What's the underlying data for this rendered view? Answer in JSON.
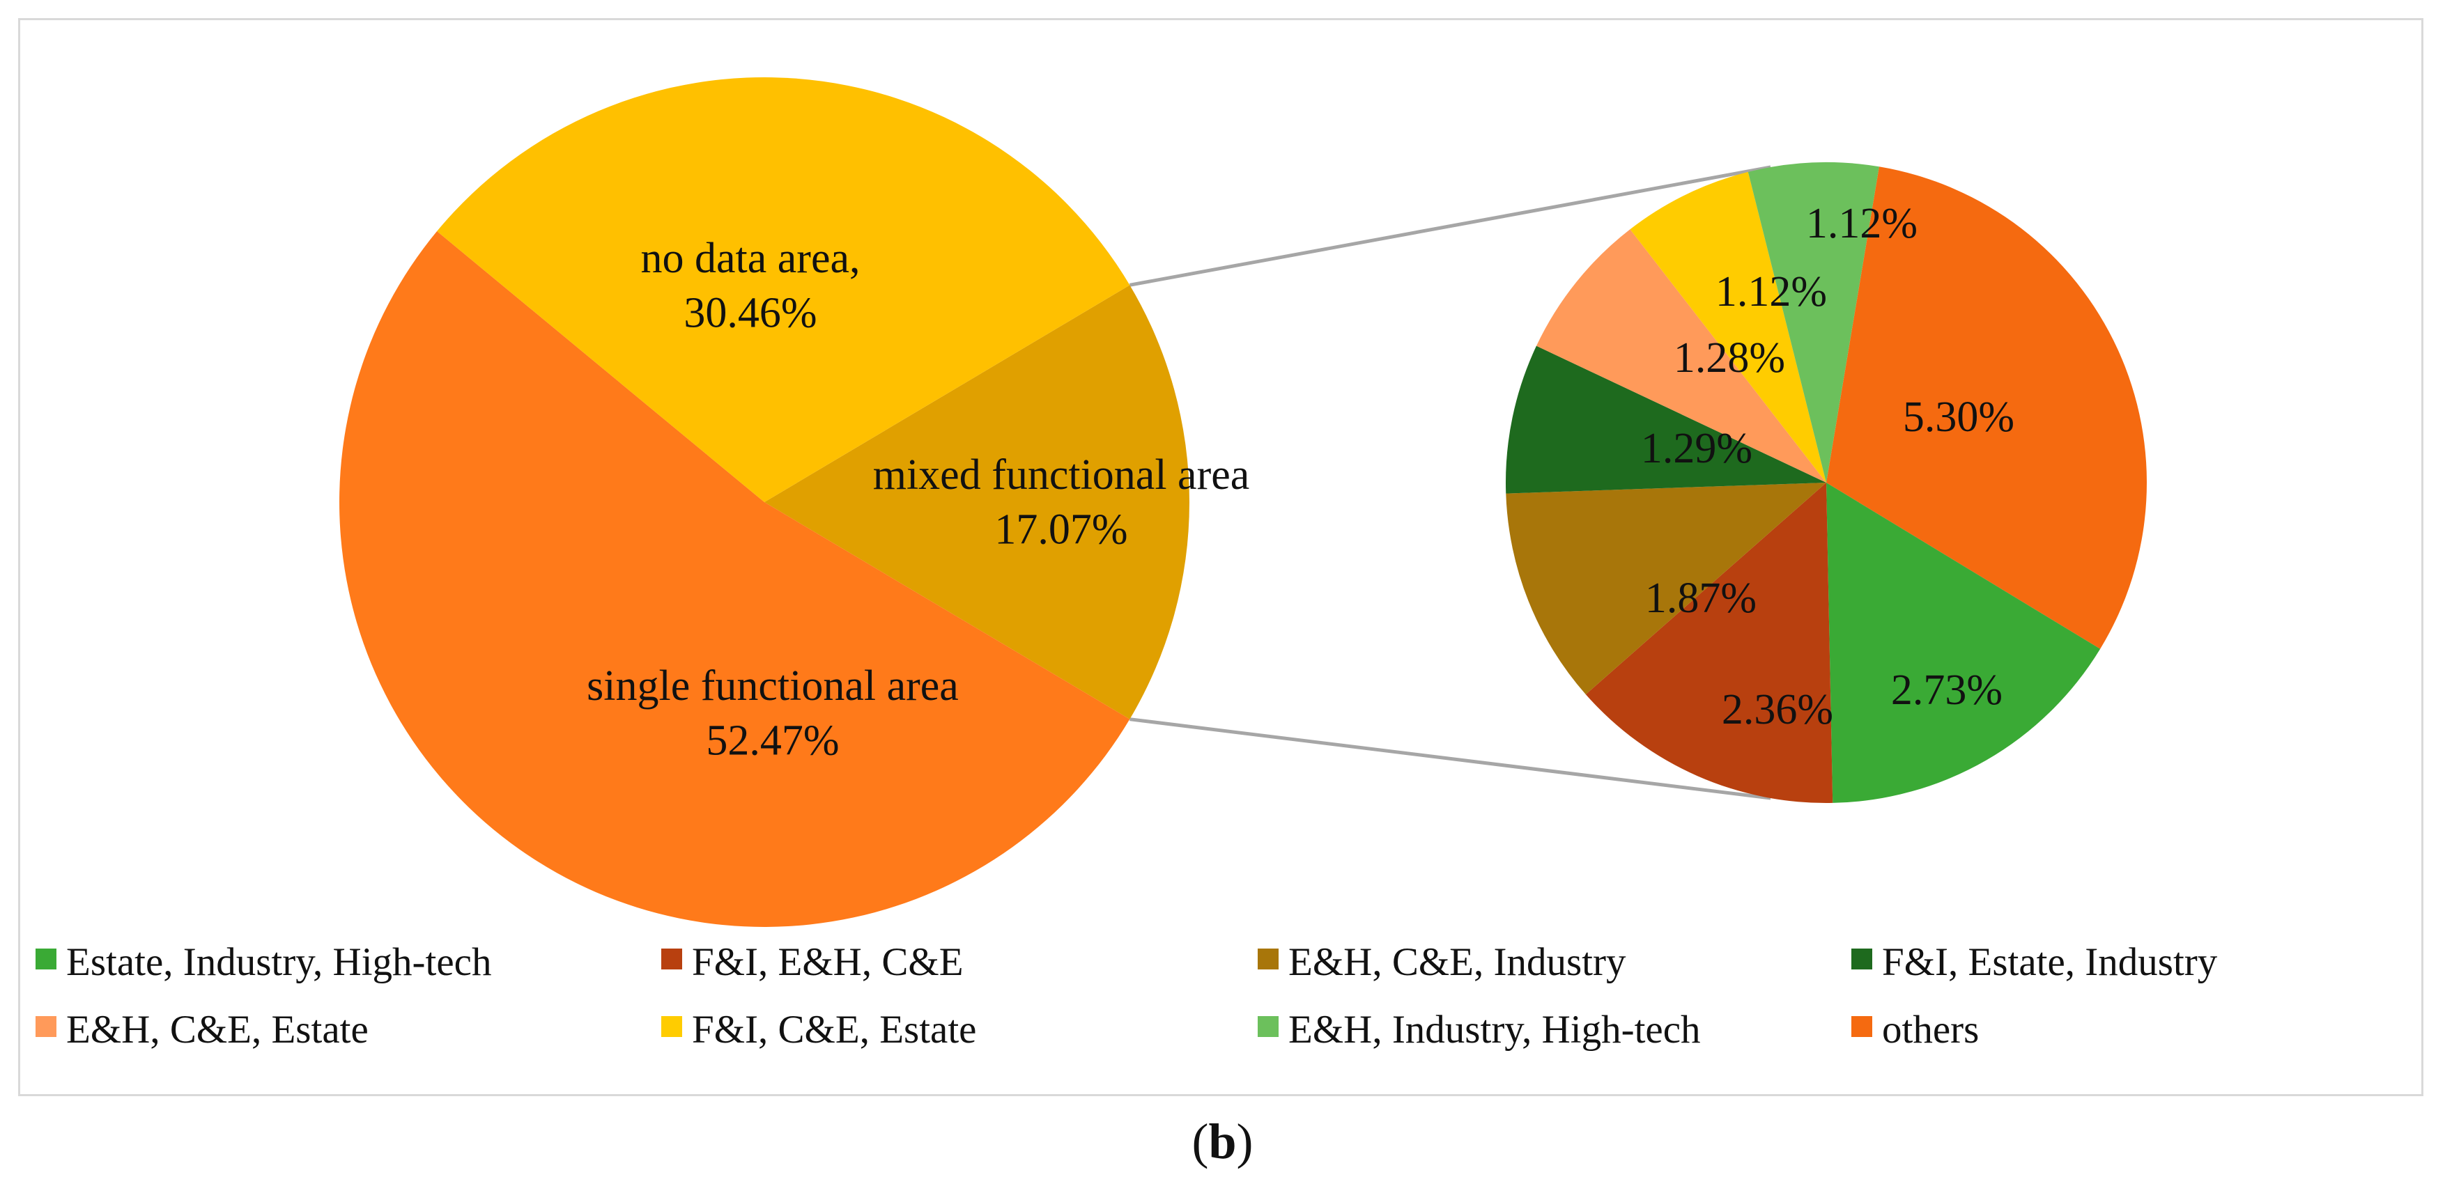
{
  "chart_data": {
    "type": "pie",
    "subtype": "pie-of-pie",
    "main_pie": {
      "slices": [
        {
          "label": "mixed functional area",
          "value": 17.07,
          "value_text": "17.07%",
          "color": "#E0A000"
        },
        {
          "label": "single functional area",
          "value": 52.47,
          "value_text": "52.47%",
          "color": "#FF7A1A"
        },
        {
          "label": "no data area",
          "label_text": "no data area,",
          "value": 30.46,
          "value_text": "30.46%",
          "color": "#FFC000"
        }
      ]
    },
    "secondary_pie": {
      "of": "mixed functional area",
      "slices": [
        {
          "label": "others",
          "value": 5.3,
          "value_text": "5.30%",
          "color": "#F56A10"
        },
        {
          "label": "Estate, Industry, High-tech",
          "value": 2.73,
          "value_text": "2.73%",
          "color": "#3AAA35"
        },
        {
          "label": "F&I, E&H, C&E",
          "value": 2.36,
          "value_text": "2.36%",
          "color": "#B8400F"
        },
        {
          "label": "E&H, C&E, Industry",
          "value": 1.87,
          "value_text": "1.87%",
          "color": "#A8760A"
        },
        {
          "label": "F&I, Estate, Industry",
          "value": 1.29,
          "value_text": "1.29%",
          "color": "#1E6A1E"
        },
        {
          "label": "E&H, C&E, Estate",
          "value": 1.28,
          "value_text": "1.28%",
          "color": "#FF9A5A"
        },
        {
          "label": "F&I, C&E, Estate",
          "value": 1.12,
          "value_text": "1.12%",
          "color": "#FFCC00"
        },
        {
          "label": "E&H, Industry, High-tech",
          "value": 1.12,
          "value_text": "1.12%",
          "color": "#6CC05C"
        }
      ]
    },
    "legend": {
      "position": "bottom",
      "entries": [
        {
          "label": "Estate, Industry, High-tech",
          "color": "#3AAA35"
        },
        {
          "label": "F&I, E&H, C&E",
          "color": "#B8400F"
        },
        {
          "label": "E&H, C&E, Industry",
          "color": "#A8760A"
        },
        {
          "label": "F&I, Estate, Industry",
          "color": "#1E6A1E"
        },
        {
          "label": "E&H, C&E, Estate",
          "color": "#FF9A5A"
        },
        {
          "label": "F&I, C&E, Estate",
          "color": "#FFCC00"
        },
        {
          "label": "E&H, Industry, High-tech",
          "color": "#6CC05C"
        },
        {
          "label": "others",
          "color": "#F56A10"
        }
      ]
    }
  },
  "caption": {
    "open": "(",
    "letter": "b",
    "close": ")"
  }
}
